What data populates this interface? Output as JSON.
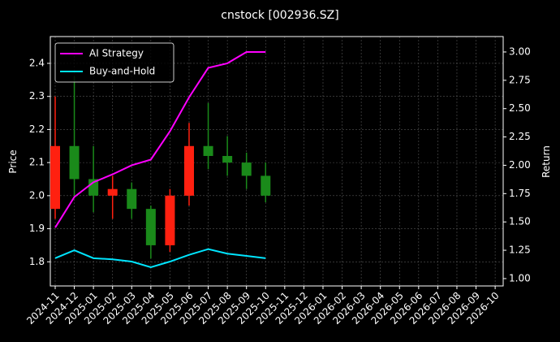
{
  "chart_data": {
    "type": "candlestick",
    "title": "cnstock [002936.SZ]",
    "y_label": "Price",
    "y2_label": "Return",
    "xticks": [
      "2024-11",
      "2024-12",
      "2025-01",
      "2025-02",
      "2025-03",
      "2025-04",
      "2025-05",
      "2025-06",
      "2025-07",
      "2025-08",
      "2025-09",
      "2025-10",
      "2025-11",
      "2025-12",
      "2026-01",
      "2026-02",
      "2026-03",
      "2026-04",
      "2026-05",
      "2026-06",
      "2026-07",
      "2026-08",
      "2026-09",
      "2026-10"
    ],
    "x": [
      "2024-11",
      "2024-12",
      "2025-01",
      "2025-02",
      "2025-03",
      "2025-04",
      "2025-05",
      "2025-06",
      "2025-07",
      "2025-08",
      "2025-09",
      "2025-10"
    ],
    "open": [
      1.96,
      2.15,
      2.05,
      2.0,
      2.02,
      1.96,
      1.85,
      2.0,
      2.15,
      2.12,
      2.1,
      2.06
    ],
    "high": [
      2.3,
      2.36,
      2.15,
      2.06,
      2.04,
      1.97,
      2.02,
      2.22,
      2.28,
      2.18,
      2.13,
      2.1
    ],
    "low": [
      1.93,
      2.0,
      1.95,
      1.93,
      1.93,
      1.81,
      1.83,
      1.97,
      2.08,
      2.06,
      2.02,
      1.98
    ],
    "close": [
      2.15,
      2.05,
      2.0,
      2.02,
      1.96,
      1.85,
      2.0,
      2.15,
      2.12,
      2.1,
      2.06,
      2.0
    ],
    "up_color": "#ff2010",
    "down_color": "#1a8a1a",
    "series": [
      {
        "name": "AI Strategy",
        "color": "#ff00ff",
        "axis": "y2",
        "values": [
          1.45,
          1.72,
          1.85,
          1.92,
          2.0,
          2.05,
          2.3,
          2.6,
          2.86,
          2.9,
          3.0,
          3.0
        ]
      },
      {
        "name": "Buy-and-Hold",
        "color": "#00e5ff",
        "axis": "y2",
        "values": [
          1.18,
          1.25,
          1.18,
          1.17,
          1.15,
          1.1,
          1.15,
          1.21,
          1.26,
          1.22,
          1.2,
          1.18
        ]
      }
    ],
    "ylim": [
      1.727,
      2.481
    ],
    "yticks": [
      1.8,
      1.9,
      {
        "value": 2,
        "label": "2.0"
      },
      2.1,
      2.2,
      2.3,
      2.4
    ],
    "y2lim": [
      0.935,
      3.136
    ],
    "y2ticks": [
      {
        "value": 1,
        "label": "1.00"
      },
      {
        "value": 1.25,
        "label": "1.25"
      },
      {
        "value": 1.5,
        "label": "1.50"
      },
      {
        "value": 1.75,
        "label": "1.75"
      },
      {
        "value": 2,
        "label": "2.00"
      },
      {
        "value": 2.25,
        "label": "2.25"
      },
      {
        "value": 2.5,
        "label": "2.50"
      },
      {
        "value": 2.75,
        "label": "2.75"
      },
      {
        "value": 3,
        "label": "3.00"
      }
    ],
    "grid": true,
    "legend": "upper-left"
  }
}
